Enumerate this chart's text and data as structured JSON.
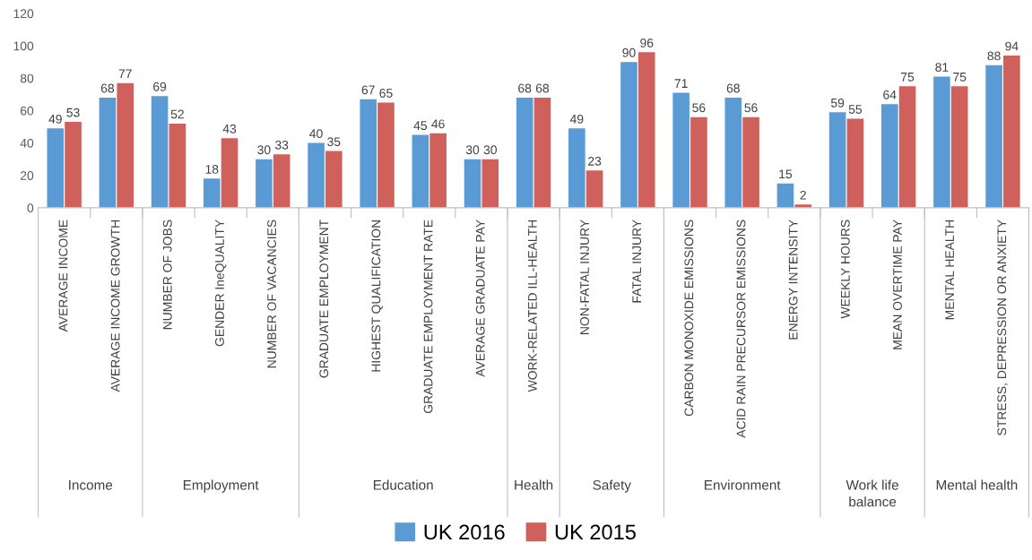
{
  "chart_data": {
    "type": "bar",
    "categories": [
      "AVERAGE INCOME",
      "AVERAGE INCOME GROWTH",
      "NUMBER OF JOBS",
      "GENDER IneQUALITY",
      "NUMBER OF VACANCIES",
      "GRADUATE EMPLOYMENT",
      "HIGHEST QUALIFICATION",
      "GRADUATE EMPLOYMENT RATE",
      "AVERAGE GRADUATE PAY",
      "WORK-RELATED ILL-HEALTH",
      "NON-FATAL INJURY",
      "FATAL INJURY",
      "CARBON MONOXIDE EMISSIONS",
      "ACID RAIN PRECURSOR EMISSIONS",
      "ENERGY INTENSITY",
      "WEEKLY HOURS",
      "MEAN OVERTIME PAY",
      "MENTAL HEALTH",
      "STRESS, DEPRESSION OR ANXIETY"
    ],
    "series": [
      {
        "name": "UK 2016",
        "color": "#5b9bd5",
        "values": [
          49,
          68,
          69,
          18,
          30,
          40,
          67,
          45,
          30,
          68,
          49,
          90,
          71,
          68,
          15,
          59,
          64,
          81,
          88
        ]
      },
      {
        "name": "UK 2015",
        "color": "#d0605b",
        "values": [
          53,
          77,
          52,
          43,
          33,
          35,
          65,
          46,
          30,
          68,
          23,
          96,
          56,
          56,
          2,
          55,
          75,
          75,
          94
        ]
      }
    ],
    "annotations": [
      "Income",
      "Employment",
      "Education",
      "Health",
      "Safety",
      "Environment",
      "Work life balance",
      "Mental health"
    ],
    "ylim": [
      0,
      120
    ],
    "yticks": [
      0,
      20,
      40,
      60,
      80,
      100,
      120
    ],
    "data_labels": true,
    "legend": "bottom",
    "grid": false
  }
}
